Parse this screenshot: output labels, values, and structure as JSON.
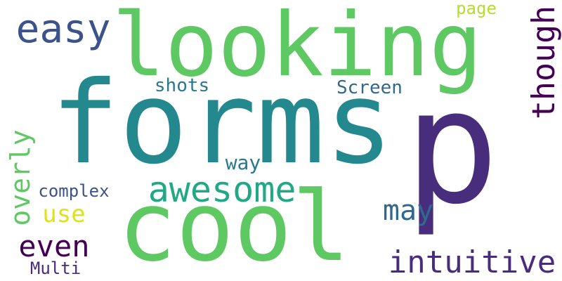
{
  "words": [
    {
      "text": "forms",
      "color": "#23898e"
    },
    {
      "text": "cool",
      "color": "#5ec962"
    },
    {
      "text": "p",
      "color": "#472d7b"
    },
    {
      "text": "looking",
      "color": "#5ec962"
    },
    {
      "text": "awesome",
      "color": "#22a884"
    },
    {
      "text": "easy",
      "color": "#3b528b"
    },
    {
      "text": "intuitive",
      "color": "#472d7b"
    },
    {
      "text": "though",
      "color": "#440154"
    },
    {
      "text": "may",
      "color": "#31688e"
    },
    {
      "text": "even",
      "color": "#440154"
    },
    {
      "text": "use",
      "color": "#dde318"
    },
    {
      "text": "overly",
      "color": "#5ec962"
    },
    {
      "text": "shots",
      "color": "#2a788e"
    },
    {
      "text": "Screen",
      "color": "#31688e"
    },
    {
      "text": "complex",
      "color": "#3b528b"
    },
    {
      "text": "way",
      "color": "#2a788e"
    },
    {
      "text": "Multi",
      "color": "#472d7b"
    },
    {
      "text": "page",
      "color": "#b5de2b"
    }
  ]
}
